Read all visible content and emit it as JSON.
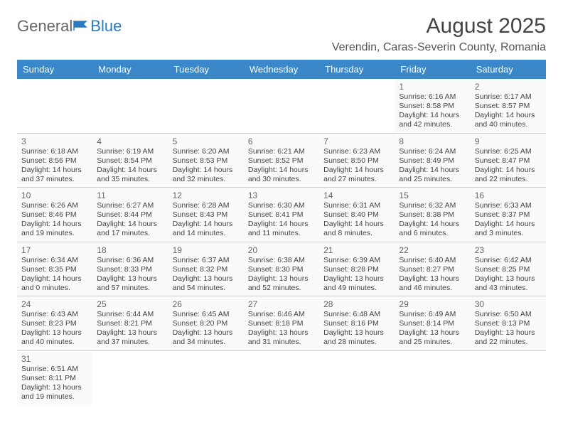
{
  "logo": {
    "text1": "General",
    "text2": "Blue"
  },
  "title": "August 2025",
  "location": "Verendin, Caras-Severin County, Romania",
  "colors": {
    "header_bg": "#3a88c9",
    "header_text": "#ffffff",
    "border": "#cccccc",
    "cell_bg": "#fafafa",
    "text": "#444444",
    "logo_accent": "#2b7bbf"
  },
  "weekdays": [
    "Sunday",
    "Monday",
    "Tuesday",
    "Wednesday",
    "Thursday",
    "Friday",
    "Saturday"
  ],
  "weeks": [
    [
      null,
      null,
      null,
      null,
      null,
      {
        "d": "1",
        "sr": "6:16 AM",
        "ss": "8:58 PM",
        "dl": "14 hours and 42 minutes."
      },
      {
        "d": "2",
        "sr": "6:17 AM",
        "ss": "8:57 PM",
        "dl": "14 hours and 40 minutes."
      }
    ],
    [
      {
        "d": "3",
        "sr": "6:18 AM",
        "ss": "8:56 PM",
        "dl": "14 hours and 37 minutes."
      },
      {
        "d": "4",
        "sr": "6:19 AM",
        "ss": "8:54 PM",
        "dl": "14 hours and 35 minutes."
      },
      {
        "d": "5",
        "sr": "6:20 AM",
        "ss": "8:53 PM",
        "dl": "14 hours and 32 minutes."
      },
      {
        "d": "6",
        "sr": "6:21 AM",
        "ss": "8:52 PM",
        "dl": "14 hours and 30 minutes."
      },
      {
        "d": "7",
        "sr": "6:23 AM",
        "ss": "8:50 PM",
        "dl": "14 hours and 27 minutes."
      },
      {
        "d": "8",
        "sr": "6:24 AM",
        "ss": "8:49 PM",
        "dl": "14 hours and 25 minutes."
      },
      {
        "d": "9",
        "sr": "6:25 AM",
        "ss": "8:47 PM",
        "dl": "14 hours and 22 minutes."
      }
    ],
    [
      {
        "d": "10",
        "sr": "6:26 AM",
        "ss": "8:46 PM",
        "dl": "14 hours and 19 minutes."
      },
      {
        "d": "11",
        "sr": "6:27 AM",
        "ss": "8:44 PM",
        "dl": "14 hours and 17 minutes."
      },
      {
        "d": "12",
        "sr": "6:28 AM",
        "ss": "8:43 PM",
        "dl": "14 hours and 14 minutes."
      },
      {
        "d": "13",
        "sr": "6:30 AM",
        "ss": "8:41 PM",
        "dl": "14 hours and 11 minutes."
      },
      {
        "d": "14",
        "sr": "6:31 AM",
        "ss": "8:40 PM",
        "dl": "14 hours and 8 minutes."
      },
      {
        "d": "15",
        "sr": "6:32 AM",
        "ss": "8:38 PM",
        "dl": "14 hours and 6 minutes."
      },
      {
        "d": "16",
        "sr": "6:33 AM",
        "ss": "8:37 PM",
        "dl": "14 hours and 3 minutes."
      }
    ],
    [
      {
        "d": "17",
        "sr": "6:34 AM",
        "ss": "8:35 PM",
        "dl": "14 hours and 0 minutes."
      },
      {
        "d": "18",
        "sr": "6:36 AM",
        "ss": "8:33 PM",
        "dl": "13 hours and 57 minutes."
      },
      {
        "d": "19",
        "sr": "6:37 AM",
        "ss": "8:32 PM",
        "dl": "13 hours and 54 minutes."
      },
      {
        "d": "20",
        "sr": "6:38 AM",
        "ss": "8:30 PM",
        "dl": "13 hours and 52 minutes."
      },
      {
        "d": "21",
        "sr": "6:39 AM",
        "ss": "8:28 PM",
        "dl": "13 hours and 49 minutes."
      },
      {
        "d": "22",
        "sr": "6:40 AM",
        "ss": "8:27 PM",
        "dl": "13 hours and 46 minutes."
      },
      {
        "d": "23",
        "sr": "6:42 AM",
        "ss": "8:25 PM",
        "dl": "13 hours and 43 minutes."
      }
    ],
    [
      {
        "d": "24",
        "sr": "6:43 AM",
        "ss": "8:23 PM",
        "dl": "13 hours and 40 minutes."
      },
      {
        "d": "25",
        "sr": "6:44 AM",
        "ss": "8:21 PM",
        "dl": "13 hours and 37 minutes."
      },
      {
        "d": "26",
        "sr": "6:45 AM",
        "ss": "8:20 PM",
        "dl": "13 hours and 34 minutes."
      },
      {
        "d": "27",
        "sr": "6:46 AM",
        "ss": "8:18 PM",
        "dl": "13 hours and 31 minutes."
      },
      {
        "d": "28",
        "sr": "6:48 AM",
        "ss": "8:16 PM",
        "dl": "13 hours and 28 minutes."
      },
      {
        "d": "29",
        "sr": "6:49 AM",
        "ss": "8:14 PM",
        "dl": "13 hours and 25 minutes."
      },
      {
        "d": "30",
        "sr": "6:50 AM",
        "ss": "8:13 PM",
        "dl": "13 hours and 22 minutes."
      }
    ],
    [
      {
        "d": "31",
        "sr": "6:51 AM",
        "ss": "8:11 PM",
        "dl": "13 hours and 19 minutes."
      },
      null,
      null,
      null,
      null,
      null,
      null
    ]
  ],
  "labels": {
    "sunrise": "Sunrise: ",
    "sunset": "Sunset: ",
    "daylight": "Daylight: "
  }
}
